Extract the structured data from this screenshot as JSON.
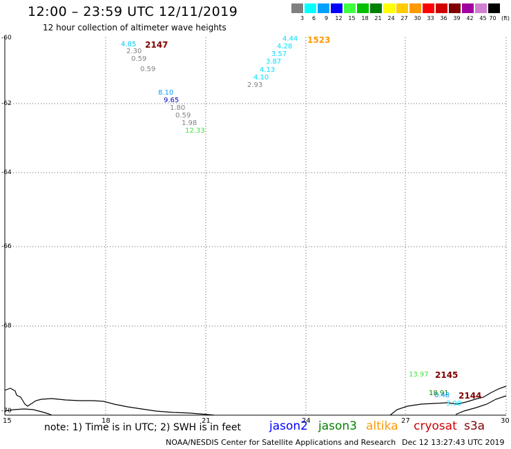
{
  "header": {
    "title": "12:00 – 23:59 UTC 12/11/2019",
    "subtitle": "12 hour collection of altimeter wave heights"
  },
  "legend": {
    "unit": "(ft)",
    "bins": [
      {
        "label": "3",
        "color": "#808080"
      },
      {
        "label": "6",
        "color": "#00ffff"
      },
      {
        "label": "9",
        "color": "#00a0ff"
      },
      {
        "label": "12",
        "color": "#0000ff"
      },
      {
        "label": "15",
        "color": "#40ff40"
      },
      {
        "label": "18",
        "color": "#00c000"
      },
      {
        "label": "21",
        "color": "#008000"
      },
      {
        "label": "24",
        "color": "#ffff00"
      },
      {
        "label": "27",
        "color": "#ffcc00"
      },
      {
        "label": "30",
        "color": "#ff9900"
      },
      {
        "label": "33",
        "color": "#ff0000"
      },
      {
        "label": "36",
        "color": "#d00000"
      },
      {
        "label": "39",
        "color": "#800000"
      },
      {
        "label": "42",
        "color": "#a000a0"
      },
      {
        "label": "45",
        "color": "#d080d0"
      },
      {
        "label": "70",
        "color": "#000000"
      }
    ]
  },
  "map": {
    "lat_labels": [
      "-60",
      "-62",
      "-64",
      "-66",
      "-68",
      "-70"
    ],
    "lon_labels": [
      "15",
      "18",
      "21",
      "24",
      "27",
      "30"
    ],
    "passes": [
      {
        "id": "2147",
        "color": "#800000"
      },
      {
        "id": "1523",
        "color": "#ff9900"
      },
      {
        "id": "2145",
        "color": "#800000"
      },
      {
        "id": "2144",
        "color": "#800000"
      }
    ],
    "readings": [
      {
        "text": "4.85",
        "color": "#00c8ff"
      },
      {
        "text": "2.30",
        "color": "#808080"
      },
      {
        "text": "0.59",
        "color": "#808080"
      },
      {
        "text": "0.59",
        "color": "#808080"
      },
      {
        "text": "8.10",
        "color": "#00a0ff"
      },
      {
        "text": "9.65",
        "color": "#0000c0"
      },
      {
        "text": "1.80",
        "color": "#808080"
      },
      {
        "text": "0.59",
        "color": "#808080"
      },
      {
        "text": "1.98",
        "color": "#808080"
      },
      {
        "text": "12.33",
        "color": "#40e040"
      },
      {
        "text": "4.44",
        "color": "#00e0ff"
      },
      {
        "text": "4.28",
        "color": "#00e0ff"
      },
      {
        "text": "3.57",
        "color": "#00e0ff"
      },
      {
        "text": "3.87",
        "color": "#00e0ff"
      },
      {
        "text": "4.13",
        "color": "#00e0ff"
      },
      {
        "text": "4.10",
        "color": "#00e0ff"
      },
      {
        "text": "2.93",
        "color": "#808080"
      },
      {
        "text": "13.97",
        "color": "#40e040"
      },
      {
        "text": "18.91",
        "color": "#008000"
      },
      {
        "text": "8.48",
        "color": "#00a0ff"
      },
      {
        "text": "3.90",
        "color": "#00e0ff"
      }
    ]
  },
  "footer": {
    "note": "note: 1) Time is in UTC; 2) SWH is in feet",
    "satellites": [
      {
        "name": "jason2",
        "color": "#0000ff"
      },
      {
        "name": "jason3",
        "color": "#008000"
      },
      {
        "name": "altika",
        "color": "#ff9900"
      },
      {
        "name": "cryosat",
        "color": "#d00000"
      },
      {
        "name": "s3a",
        "color": "#800000"
      }
    ],
    "credit": "NOAA/NESDIS Center for Satellite Applications and Research",
    "timestamp": "Dec 12 13:27:43 UTC 2019"
  }
}
